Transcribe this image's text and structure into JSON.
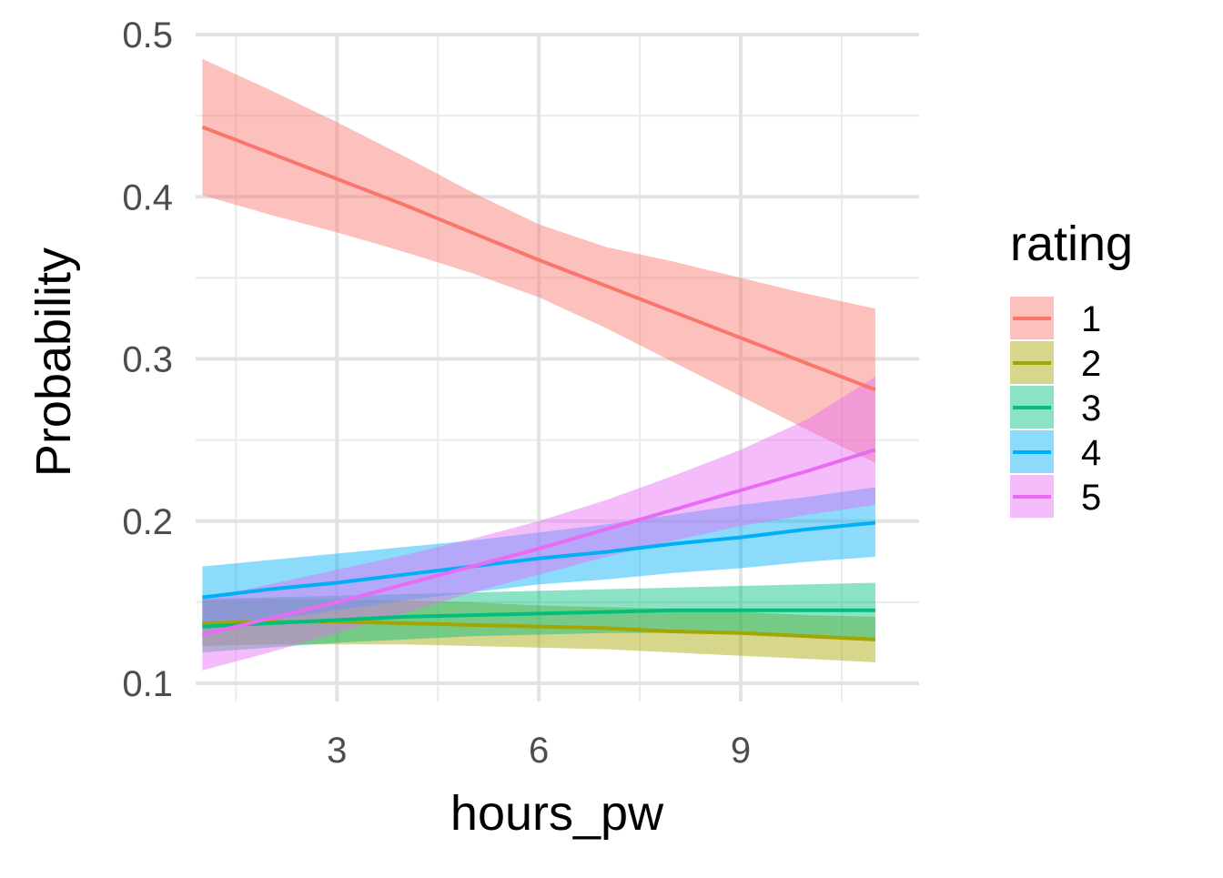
{
  "chart_data": {
    "type": "line",
    "title": "",
    "xlabel": "hours_pw",
    "ylabel": "Probability",
    "xlim": [
      0.9,
      11.65
    ],
    "ylim": [
      0.1,
      0.5
    ],
    "x_ticks": [
      3,
      6,
      9
    ],
    "x_tick_labels": [
      "3",
      "6",
      "9"
    ],
    "x_minor_ticks": [
      1.5,
      4.5,
      7.5,
      10.5
    ],
    "y_ticks": [
      0.1,
      0.2,
      0.3,
      0.4,
      0.5
    ],
    "y_tick_labels": [
      "0.1",
      "0.2",
      "0.3",
      "0.4",
      "0.5"
    ],
    "y_minor_ticks": [
      0.15,
      0.25,
      0.35,
      0.45
    ],
    "grid": true,
    "legend": {
      "title": "rating",
      "position": "right"
    },
    "x": [
      1,
      2,
      3,
      4,
      5,
      6,
      7,
      8,
      9,
      10,
      11
    ],
    "series": [
      {
        "name": "1",
        "color": "#F8766D",
        "values": [
          0.443,
          0.427,
          0.411,
          0.395,
          0.378,
          0.361,
          0.345,
          0.329,
          0.313,
          0.297,
          0.281
        ],
        "lower": [
          0.401,
          0.389,
          0.378,
          0.366,
          0.353,
          0.338,
          0.319,
          0.298,
          0.277,
          0.256,
          0.236
        ],
        "upper": [
          0.485,
          0.466,
          0.446,
          0.425,
          0.403,
          0.383,
          0.369,
          0.36,
          0.35,
          0.34,
          0.331
        ]
      },
      {
        "name": "2",
        "color": "#A3A500",
        "values": [
          0.137,
          0.138,
          0.138,
          0.137,
          0.136,
          0.135,
          0.134,
          0.132,
          0.131,
          0.129,
          0.127
        ],
        "lower": [
          0.123,
          0.124,
          0.124,
          0.124,
          0.123,
          0.122,
          0.121,
          0.119,
          0.117,
          0.115,
          0.113
        ],
        "upper": [
          0.151,
          0.152,
          0.152,
          0.151,
          0.15,
          0.148,
          0.147,
          0.146,
          0.144,
          0.142,
          0.141
        ]
      },
      {
        "name": "3",
        "color": "#00BF7D",
        "values": [
          0.135,
          0.137,
          0.139,
          0.141,
          0.142,
          0.143,
          0.144,
          0.145,
          0.145,
          0.145,
          0.145
        ],
        "lower": [
          0.119,
          0.122,
          0.125,
          0.127,
          0.129,
          0.13,
          0.131,
          0.131,
          0.13,
          0.129,
          0.128
        ],
        "upper": [
          0.152,
          0.153,
          0.154,
          0.155,
          0.156,
          0.157,
          0.158,
          0.159,
          0.16,
          0.161,
          0.162
        ]
      },
      {
        "name": "4",
        "color": "#00B0F6",
        "values": [
          0.153,
          0.158,
          0.162,
          0.167,
          0.172,
          0.177,
          0.181,
          0.186,
          0.19,
          0.195,
          0.199
        ],
        "lower": [
          0.133,
          0.139,
          0.145,
          0.151,
          0.156,
          0.161,
          0.164,
          0.168,
          0.171,
          0.175,
          0.178
        ],
        "upper": [
          0.172,
          0.176,
          0.18,
          0.184,
          0.188,
          0.193,
          0.198,
          0.204,
          0.21,
          0.215,
          0.221
        ]
      },
      {
        "name": "5",
        "color": "#E76BF3",
        "values": [
          0.13,
          0.14,
          0.15,
          0.161,
          0.172,
          0.183,
          0.195,
          0.207,
          0.219,
          0.231,
          0.244
        ],
        "lower": [
          0.108,
          0.119,
          0.131,
          0.143,
          0.156,
          0.167,
          0.178,
          0.188,
          0.197,
          0.204,
          0.21
        ],
        "upper": [
          0.152,
          0.161,
          0.17,
          0.179,
          0.189,
          0.2,
          0.213,
          0.228,
          0.244,
          0.263,
          0.289
        ]
      }
    ]
  }
}
